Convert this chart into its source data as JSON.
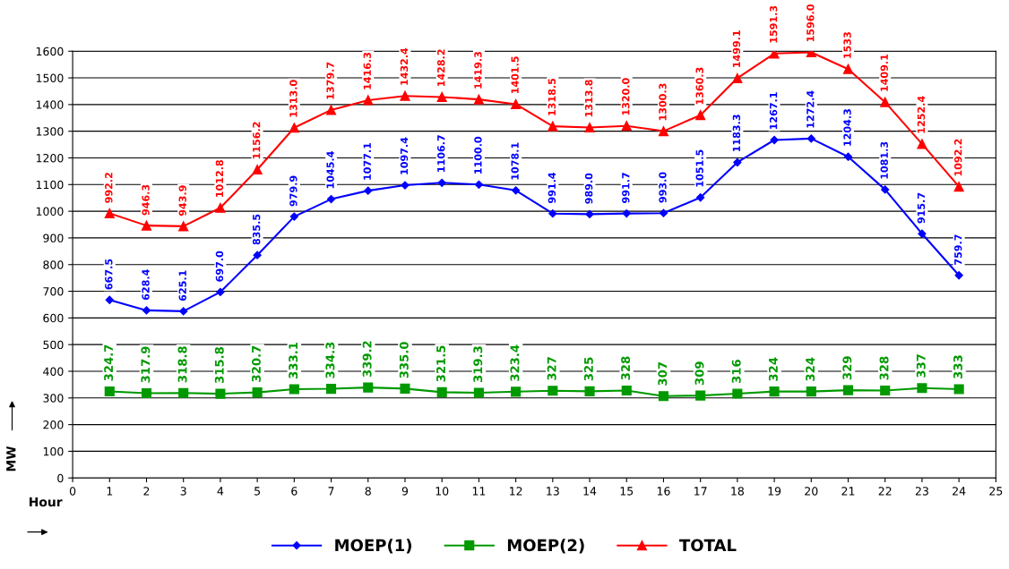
{
  "chart_data": {
    "type": "line",
    "xlabel": "Hour",
    "ylabel": "MW",
    "x": [
      1,
      2,
      3,
      4,
      5,
      6,
      7,
      8,
      9,
      10,
      11,
      12,
      13,
      14,
      15,
      16,
      17,
      18,
      19,
      20,
      21,
      22,
      23,
      24
    ],
    "xlim": [
      0,
      25
    ],
    "xticks": [
      0,
      1,
      2,
      3,
      4,
      5,
      6,
      7,
      8,
      9,
      10,
      11,
      12,
      13,
      14,
      15,
      16,
      17,
      18,
      19,
      20,
      21,
      22,
      23,
      24,
      25
    ],
    "ylim": [
      0,
      1600
    ],
    "yticks": [
      0,
      100,
      200,
      300,
      400,
      500,
      600,
      700,
      800,
      900,
      1000,
      1100,
      1200,
      1300,
      1400,
      1500,
      1600
    ],
    "grid": "y",
    "legend": "bottom",
    "line_style": "solid",
    "series": [
      {
        "name": "MOEP(1)",
        "color": "#0000ff",
        "marker": "diamond",
        "values": [
          667.5,
          628.4,
          625.1,
          697.0,
          835.5,
          979.9,
          1045.4,
          1077.1,
          1097.4,
          1106.7,
          1100.0,
          1078.1,
          991.4,
          989.0,
          991.7,
          993.0,
          1051.5,
          1183.3,
          1267.1,
          1272.4,
          1204.3,
          1081.3,
          915.7,
          759.7
        ],
        "value_labels": [
          "667.5",
          "628.4",
          "625.1",
          "697.0",
          "835.5",
          "979.9",
          "1045.4",
          "1077.1",
          "1097.4",
          "1106.7",
          "1100.0",
          "1078.1",
          "991.4",
          "989.0",
          "991.7",
          "993.0",
          "1051.5",
          "1183.3",
          "1267.1",
          "1272.4",
          "1204.3",
          "1081.3",
          "915.7",
          "759.7"
        ]
      },
      {
        "name": "MOEP(2)",
        "color": "#009900",
        "marker": "square",
        "values": [
          324.7,
          317.9,
          318.8,
          315.8,
          320.7,
          333.1,
          334.3,
          339.2,
          335.0,
          321.5,
          319.3,
          323.4,
          327,
          325,
          328,
          307,
          309,
          316,
          324,
          324,
          329,
          328,
          337,
          333
        ],
        "value_labels": [
          "324.7",
          "317.9",
          "318.8",
          "315.8",
          "320.7",
          "333.1",
          "334.3",
          "339.2",
          "335.0",
          "321.5",
          "319.3",
          "323.4",
          "327",
          "325",
          "328",
          "307",
          "309",
          "316",
          "324",
          "324",
          "329",
          "328",
          "337",
          "333"
        ]
      },
      {
        "name": "TOTAL",
        "color": "#ff0000",
        "marker": "triangle",
        "values": [
          992.2,
          946.3,
          943.9,
          1012.8,
          1156.2,
          1313.0,
          1379.7,
          1416.3,
          1432.4,
          1428.2,
          1419.3,
          1401.5,
          1318.5,
          1313.8,
          1320.0,
          1300.3,
          1360.3,
          1499.1,
          1591.3,
          1596.0,
          1533,
          1409.1,
          1252.4,
          1092.2
        ],
        "value_labels": [
          "992.2",
          "946.3",
          "943.9",
          "1012.8",
          "1156.2",
          "1313.0",
          "1379.7",
          "1416.3",
          "1432.4",
          "1428.2",
          "1419.3",
          "1401.5",
          "1318.5",
          "1313.8",
          "1320.0",
          "1300.3",
          "1360.3",
          "1499.1",
          "1591.3",
          "1596.0",
          "1533",
          "1409.1",
          "1252.4",
          "1092.2"
        ]
      }
    ]
  }
}
